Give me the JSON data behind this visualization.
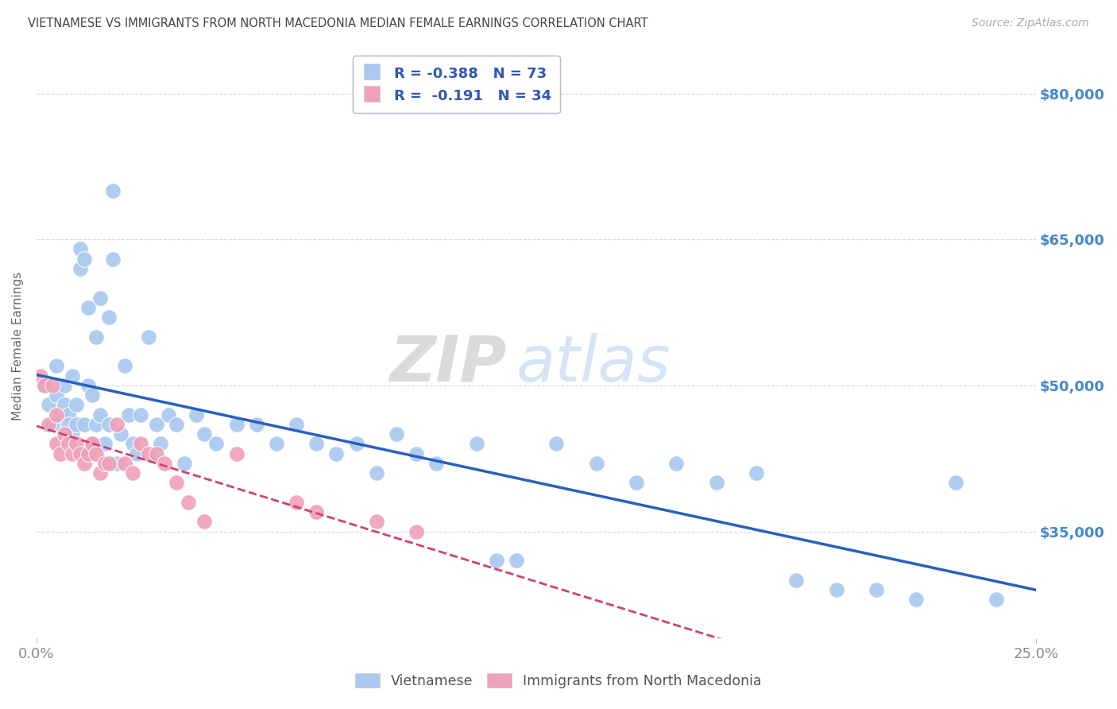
{
  "title": "VIETNAMESE VS IMMIGRANTS FROM NORTH MACEDONIA MEDIAN FEMALE EARNINGS CORRELATION CHART",
  "source": "Source: ZipAtlas.com",
  "ylabel": "Median Female Earnings",
  "watermark_zip": "ZIP",
  "watermark_atlas": "atlas",
  "legend1_label": "Vietnamese",
  "legend2_label": "Immigrants from North Macedonia",
  "R1": -0.388,
  "N1": 73,
  "R2": -0.191,
  "N2": 34,
  "color1": "#A8C8F0",
  "color2": "#F0A0B8",
  "trendline1_color": "#2860C0",
  "trendline2_color": "#D04070",
  "ytick_labels": [
    "$35,000",
    "$50,000",
    "$65,000",
    "$80,000"
  ],
  "ytick_values": [
    35000,
    50000,
    65000,
    80000
  ],
  "ymin": 24000,
  "ymax": 84000,
  "xmin": 0.0,
  "xmax": 0.25,
  "xtick_labels": [
    "0.0%",
    "25.0%"
  ],
  "background_color": "#FFFFFF",
  "grid_color": "#D8D8E8",
  "title_color": "#444444",
  "source_color": "#AAAAAA",
  "ytick_color": "#4488CC",
  "xtick_color": "#888888",
  "viet_x": [
    0.002,
    0.003,
    0.004,
    0.005,
    0.005,
    0.006,
    0.007,
    0.007,
    0.008,
    0.008,
    0.009,
    0.009,
    0.01,
    0.01,
    0.011,
    0.011,
    0.012,
    0.012,
    0.013,
    0.013,
    0.014,
    0.014,
    0.015,
    0.015,
    0.016,
    0.016,
    0.017,
    0.018,
    0.018,
    0.019,
    0.019,
    0.02,
    0.021,
    0.022,
    0.023,
    0.024,
    0.025,
    0.026,
    0.028,
    0.03,
    0.031,
    0.033,
    0.035,
    0.037,
    0.04,
    0.042,
    0.045,
    0.05,
    0.055,
    0.06,
    0.065,
    0.07,
    0.075,
    0.08,
    0.085,
    0.09,
    0.095,
    0.1,
    0.11,
    0.115,
    0.12,
    0.13,
    0.14,
    0.15,
    0.16,
    0.17,
    0.18,
    0.19,
    0.2,
    0.21,
    0.22,
    0.23,
    0.24
  ],
  "viet_y": [
    50000,
    48000,
    46000,
    49000,
    52000,
    47000,
    50000,
    48000,
    47000,
    46000,
    45000,
    51000,
    48000,
    46000,
    62000,
    64000,
    63000,
    46000,
    58000,
    50000,
    49000,
    44000,
    55000,
    46000,
    59000,
    47000,
    44000,
    46000,
    57000,
    70000,
    63000,
    42000,
    45000,
    52000,
    47000,
    44000,
    43000,
    47000,
    55000,
    46000,
    44000,
    47000,
    46000,
    42000,
    47000,
    45000,
    44000,
    46000,
    46000,
    44000,
    46000,
    44000,
    43000,
    44000,
    41000,
    45000,
    43000,
    42000,
    44000,
    32000,
    32000,
    44000,
    42000,
    40000,
    42000,
    40000,
    41000,
    30000,
    29000,
    29000,
    28000,
    40000,
    28000
  ],
  "mac_x": [
    0.001,
    0.002,
    0.003,
    0.004,
    0.005,
    0.005,
    0.006,
    0.007,
    0.008,
    0.009,
    0.01,
    0.011,
    0.012,
    0.013,
    0.014,
    0.015,
    0.016,
    0.017,
    0.018,
    0.02,
    0.022,
    0.024,
    0.026,
    0.028,
    0.03,
    0.032,
    0.035,
    0.038,
    0.042,
    0.05,
    0.065,
    0.07,
    0.085,
    0.095
  ],
  "mac_y": [
    51000,
    50000,
    46000,
    50000,
    47000,
    44000,
    43000,
    45000,
    44000,
    43000,
    44000,
    43000,
    42000,
    43000,
    44000,
    43000,
    41000,
    42000,
    42000,
    46000,
    42000,
    41000,
    44000,
    43000,
    43000,
    42000,
    40000,
    38000,
    36000,
    43000,
    38000,
    37000,
    36000,
    35000
  ]
}
